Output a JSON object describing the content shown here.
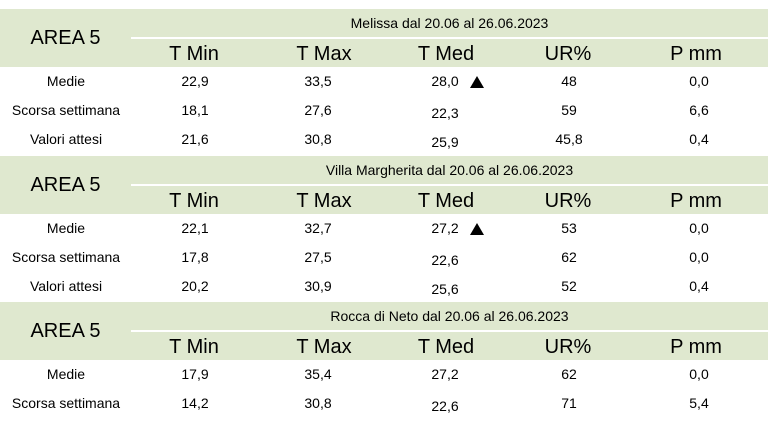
{
  "columns": [
    "T Min",
    "T Max",
    "T Med",
    "UR%",
    "P mm"
  ],
  "blocks": [
    {
      "area": "AREA 5",
      "location": "Melissa dal 20.06 al 26.06.2023",
      "rows": [
        {
          "label": "Medie",
          "tmin": "22,9",
          "tmax": "33,5",
          "tmed": "28,0",
          "ur": "48",
          "pmm": "0,0",
          "trend": "up-triangle-icon"
        },
        {
          "label": "Scorsa settimana",
          "tmin": "18,1",
          "tmax": "27,6",
          "tmed": "22,3",
          "ur": "59",
          "pmm": "6,6"
        },
        {
          "label": "Valori attesi",
          "tmin": "21,6",
          "tmax": "30,8",
          "tmed": "25,9",
          "ur": "45,8",
          "pmm": "0,4"
        }
      ]
    },
    {
      "area": "AREA 5",
      "location": "Villa Margherita dal 20.06 al 26.06.2023",
      "rows": [
        {
          "label": "Medie",
          "tmin": "22,1",
          "tmax": "32,7",
          "tmed": "27,2",
          "ur": "53",
          "pmm": "0,0",
          "trend": "up-triangle-icon"
        },
        {
          "label": "Scorsa settimana",
          "tmin": "17,8",
          "tmax": "27,5",
          "tmed": "22,6",
          "ur": "62",
          "pmm": "0,0"
        },
        {
          "label": "Valori attesi",
          "tmin": "20,2",
          "tmax": "30,9",
          "tmed": "25,6",
          "ur": "52",
          "pmm": "0,4"
        }
      ]
    },
    {
      "area": "AREA 5",
      "location": "Rocca di Neto dal 20.06 al 26.06.2023",
      "rows": [
        {
          "label": "Medie",
          "tmin": "17,9",
          "tmax": "35,4",
          "tmed": "27,2",
          "ur": "62",
          "pmm": "0,0"
        },
        {
          "label": "Scorsa settimana",
          "tmin": "14,2",
          "tmax": "30,8",
          "tmed": "22,6",
          "ur": "71",
          "pmm": "5,4"
        }
      ]
    }
  ],
  "colors": {
    "header_bg": "#dfe8cf",
    "background": "#ffffff"
  }
}
